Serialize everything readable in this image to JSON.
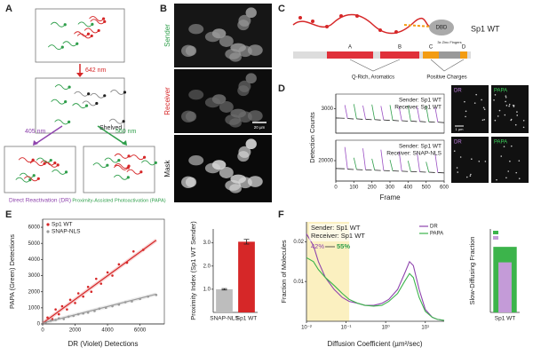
{
  "panels": {
    "A": {
      "letter": "A",
      "laser_642": "642 nm",
      "shelved": "Shelved",
      "laser_405": "405 nm",
      "laser_560": "560 nm",
      "dr_label": "Direct Reactivation (DR)",
      "papa_label": "Proximity-Assisted Photoactivation (PAPA)"
    },
    "B": {
      "letter": "B",
      "rows": [
        "Sender",
        "Receiver",
        "Mask"
      ],
      "scale_bar": "20 µm"
    },
    "C": {
      "letter": "C",
      "protein": "Sp1 WT",
      "dbd": "DBD",
      "domains": [
        "A",
        "B",
        "C",
        "D"
      ],
      "zinc": "3x Zinc Fingers",
      "q_rich": "Q-Rich, Aromatics",
      "positive": "Positive Charges"
    },
    "D": {
      "letter": "D",
      "images": [
        "DR",
        "PAPA"
      ],
      "scale_bar": "1 µm"
    },
    "E": {
      "letter": "E"
    },
    "F": {
      "letter": "F"
    }
  },
  "chart_data": [
    {
      "type": "line",
      "ylabel": "Detection Counts",
      "legend_text": [
        "Sender: Sp1 WT",
        "Receiver: Sp1 WT"
      ],
      "x": [
        0,
        49,
        50,
        65,
        99,
        100,
        115,
        149,
        150,
        165,
        199,
        200,
        215,
        249,
        250,
        265,
        299,
        300,
        315,
        349,
        350,
        365,
        399,
        400,
        415,
        449,
        450,
        465,
        499,
        500,
        515,
        549,
        550,
        565,
        599
      ],
      "xlim": [
        0,
        600
      ],
      "ylim": [
        2000,
        3600
      ],
      "yticks": [
        3000
      ],
      "series": [
        {
          "color": "#222222",
          "values": [
            2620,
            2610,
            null,
            2600,
            2580,
            null,
            2585,
            2565,
            null,
            2570,
            2550,
            null,
            2555,
            2535,
            null,
            2540,
            2520,
            null,
            2525,
            2505,
            null,
            2510,
            2490,
            null,
            2495,
            2475,
            null,
            2480,
            2460,
            null,
            2465,
            2445,
            null,
            2450,
            2430
          ]
        },
        {
          "color": "#9b4fc4",
          "values": [
            null,
            null,
            3150,
            2600,
            null,
            null,
            null,
            null,
            3130,
            2570,
            null,
            null,
            null,
            null,
            3110,
            2540,
            null,
            null,
            null,
            null,
            3090,
            2510,
            null,
            null,
            null,
            null,
            3070,
            2480,
            null,
            null,
            null,
            null,
            3050,
            2450,
            null
          ]
        },
        {
          "color": "#2e9e4a",
          "values": [
            null,
            null,
            null,
            null,
            null,
            3190,
            2585,
            null,
            null,
            null,
            null,
            3170,
            2555,
            null,
            null,
            null,
            null,
            3150,
            2525,
            null,
            null,
            null,
            null,
            3130,
            2495,
            null,
            null,
            null,
            null,
            3110,
            2465,
            null,
            null,
            null,
            null
          ]
        }
      ]
    },
    {
      "type": "line",
      "xlabel": "Frame",
      "legend_text": [
        "Sender: Sp1 WT",
        "Receiver: SNAP-NLS"
      ],
      "x": [
        0,
        49,
        50,
        65,
        99,
        100,
        115,
        149,
        150,
        165,
        199,
        200,
        215,
        249,
        250,
        265,
        299,
        300,
        315,
        349,
        350,
        365,
        399,
        400,
        415,
        449,
        450,
        465,
        499,
        500,
        515,
        549,
        550,
        565,
        599
      ],
      "xlim": [
        0,
        600
      ],
      "xticks": [
        0,
        100,
        200,
        300,
        400,
        500,
        600
      ],
      "ylim": [
        14000,
        26000
      ],
      "yticks": [
        20000
      ],
      "series": [
        {
          "color": "#222222",
          "values": [
            17700,
            17600,
            null,
            17500,
            17400,
            null,
            17400,
            17300,
            null,
            17300,
            17200,
            null,
            17200,
            17100,
            null,
            17100,
            17000,
            null,
            17000,
            16900,
            null,
            16900,
            16800,
            null,
            16800,
            16700,
            null,
            16700,
            16600,
            null,
            16600,
            16500,
            null,
            16500,
            16400
          ]
        },
        {
          "color": "#9b4fc4",
          "values": [
            null,
            null,
            24000,
            17500,
            null,
            null,
            null,
            null,
            23600,
            17300,
            null,
            null,
            null,
            null,
            23200,
            17100,
            null,
            null,
            null,
            null,
            22800,
            16900,
            null,
            null,
            null,
            null,
            22400,
            16700,
            null,
            null,
            null,
            null,
            22000,
            16500,
            null
          ]
        },
        {
          "color": "#2e9e4a",
          "values": [
            null,
            null,
            null,
            null,
            null,
            20850,
            17400,
            null,
            null,
            null,
            null,
            20550,
            17200,
            null,
            null,
            null,
            null,
            20250,
            17000,
            null,
            null,
            null,
            null,
            19950,
            16800,
            null,
            null,
            null,
            null,
            19650,
            16600,
            null,
            null,
            null,
            null
          ]
        }
      ]
    },
    {
      "type": "scatter",
      "xlabel": "DR (Violet) Detections",
      "ylabel": "PAPA (Green) Detections",
      "legend": "upper left",
      "xlim": [
        0,
        7500
      ],
      "ylim": [
        0,
        6500
      ],
      "xticks": [
        0,
        2000,
        4000,
        6000
      ],
      "yticks": [
        0,
        1000,
        2000,
        3000,
        4000,
        5000,
        6000
      ],
      "series": [
        {
          "name": "Sp1 WT",
          "color": "#d62728",
          "x": [
            300,
            600,
            800,
            1000,
            1200,
            1500,
            1700,
            2000,
            2200,
            2500,
            2800,
            3000,
            3300,
            3600,
            4000,
            4300,
            4700,
            5200,
            5600,
            6200
          ],
          "values": [
            400,
            300,
            900,
            600,
            1100,
            900,
            1500,
            1300,
            1900,
            1700,
            2300,
            2000,
            2800,
            2500,
            3200,
            3000,
            3700,
            3800,
            4500,
            4600
          ]
        },
        {
          "name": "SNAP-NLS",
          "color": "#9a9a9a",
          "x": [
            200,
            500,
            800,
            1000,
            1300,
            1600,
            1900,
            2200,
            2500,
            2800,
            3200,
            3500,
            3900,
            4300,
            4700,
            5100,
            5500,
            6000,
            6500,
            7000
          ],
          "values": [
            100,
            200,
            250,
            350,
            300,
            450,
            500,
            600,
            650,
            700,
            800,
            950,
            1000,
            1100,
            1200,
            1350,
            1400,
            1550,
            1700,
            1800
          ]
        }
      ],
      "fits": [
        {
          "color": "#d62728",
          "x": [
            0,
            7000
          ],
          "values": [
            50,
            5200
          ]
        },
        {
          "color": "#9a9a9a",
          "x": [
            0,
            7000
          ],
          "values": [
            50,
            1850
          ]
        }
      ]
    },
    {
      "type": "bar",
      "ylabel": "Proximity Index (Sp1 WT Sender)",
      "categories": [
        "SNAP-NLS",
        "Sp1 WT"
      ],
      "values": [
        1.0,
        3.05
      ],
      "errors": [
        0.03,
        0.1
      ],
      "colors": [
        "#bdbdbd",
        "#d62728"
      ],
      "ylim": [
        0,
        3.6
      ],
      "yticks": [
        {
          "value": 1,
          "label": "1.0"
        },
        {
          "value": 2,
          "label": "2.0"
        },
        {
          "value": 3,
          "label": "3.0"
        }
      ]
    },
    {
      "type": "line",
      "log_x": true,
      "xlabel": "Diffusion Coefficient (µm²/sec)",
      "ylabel": "Fraction of Molecules",
      "legend": "upper right",
      "annotations": {
        "sender": "Sender: Sp1 WT",
        "receiver": "Receiver: Sp1 WT",
        "from": "42%",
        "to": "55%"
      },
      "shaded_xrange": [
        0.01,
        0.12
      ],
      "shade_color": "#fbf0c0",
      "x": [
        0.01,
        0.015,
        0.02,
        0.03,
        0.05,
        0.08,
        0.12,
        0.2,
        0.3,
        0.5,
        0.8,
        1.2,
        2,
        3,
        4,
        5,
        7,
        10,
        15,
        20,
        30
      ],
      "xlim": [
        0.01,
        30
      ],
      "ylim": [
        0,
        0.025
      ],
      "yticks": [
        0.01,
        0.02
      ],
      "xticks": [
        {
          "value": 0.01,
          "label": "10⁻²"
        },
        {
          "value": 0.1,
          "label": "10⁻¹"
        },
        {
          "value": 1,
          "label": "10⁰"
        },
        {
          "value": 10,
          "label": "10¹"
        }
      ],
      "series": [
        {
          "name": "DR",
          "color": "#8e44ad",
          "values": [
            0.022,
            0.019,
            0.015,
            0.011,
            0.008,
            0.006,
            0.005,
            0.0045,
            0.004,
            0.004,
            0.0045,
            0.0055,
            0.008,
            0.012,
            0.015,
            0.014,
            0.008,
            0.003,
            0.001,
            0.0005,
            0.0002
          ]
        },
        {
          "name": "PAPA",
          "color": "#3cb44b",
          "values": [
            0.016,
            0.015,
            0.013,
            0.011,
            0.009,
            0.007,
            0.0055,
            0.0045,
            0.004,
            0.0038,
            0.004,
            0.005,
            0.007,
            0.01,
            0.012,
            0.011,
            0.006,
            0.0025,
            0.001,
            0.0005,
            0.0002
          ]
        }
      ]
    },
    {
      "type": "bar",
      "ylabel": "Slow-Diffusing Fraction",
      "categories": [
        "Sp1 WT"
      ],
      "ylim": [
        0,
        70
      ],
      "series": [
        {
          "name": "PAPA",
          "color": "#3cb44b",
          "values": [
            55
          ]
        },
        {
          "name": "DR",
          "color": "#c49bd8",
          "values": [
            42
          ]
        }
      ]
    }
  ]
}
